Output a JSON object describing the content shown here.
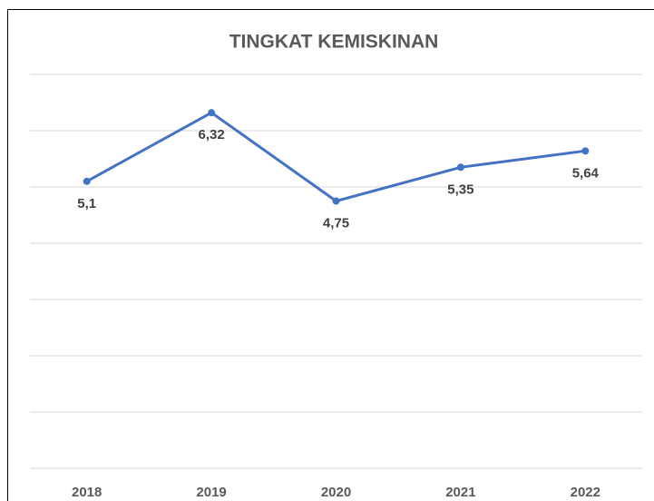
{
  "chart_data": {
    "type": "line",
    "title": "TINGKAT KEMISKINAN",
    "categories": [
      "2018",
      "2019",
      "2020",
      "2021",
      "2022"
    ],
    "series": [
      {
        "name": "Tingkat Kemiskinan",
        "color": "#4472c4",
        "values": [
          5.1,
          6.32,
          4.75,
          5.35,
          5.64
        ],
        "value_labels": [
          "5,1",
          "6,32",
          "4,75",
          "5,35",
          "5,64"
        ]
      }
    ],
    "ylim": [
      0,
      7
    ],
    "yticks": [
      0,
      1,
      2,
      3,
      4,
      5,
      6,
      7
    ],
    "grid": true
  }
}
